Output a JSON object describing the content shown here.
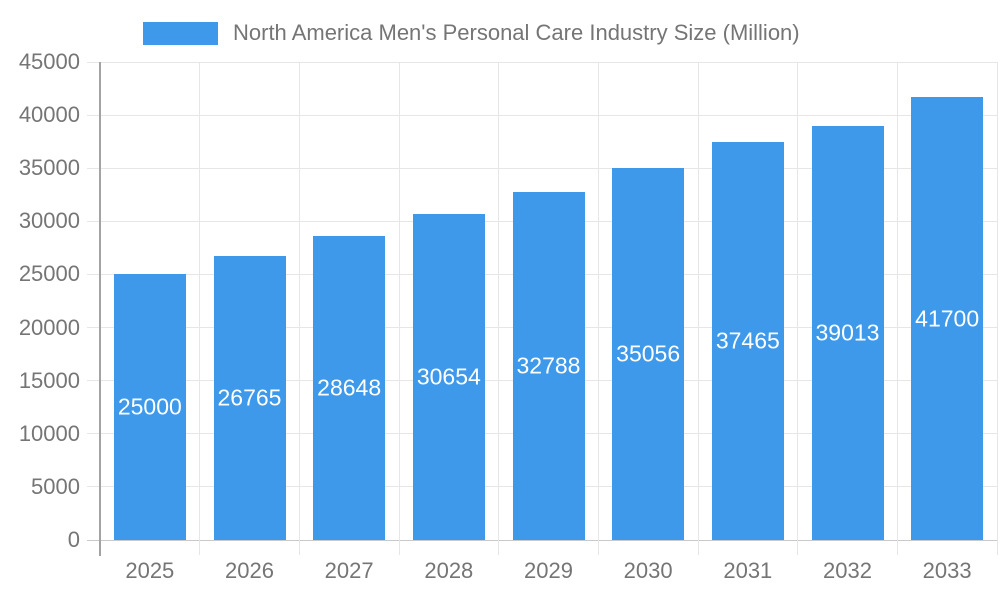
{
  "legend": {
    "label": "North America Men's Personal Care Industry Size (Million)"
  },
  "chart_data": {
    "type": "bar",
    "title": "North America Men's Personal Care Industry Size (Million)",
    "categories": [
      "2025",
      "2026",
      "2027",
      "2028",
      "2029",
      "2030",
      "2031",
      "2032",
      "2033"
    ],
    "values": [
      25000,
      26765,
      28648,
      30654,
      32788,
      35056,
      37465,
      39013,
      41700
    ],
    "series": [
      {
        "name": "North America Men's Personal Care Industry Size (Million)",
        "values": [
          25000,
          26765,
          28648,
          30654,
          32788,
          35056,
          37465,
          39013,
          41700
        ]
      }
    ],
    "xlabel": "",
    "ylabel": "",
    "ylim": [
      0,
      45000
    ],
    "yticks": [
      0,
      5000,
      10000,
      15000,
      20000,
      25000,
      30000,
      35000,
      40000,
      45000
    ],
    "grid": "both",
    "legend_position": "top",
    "value_labels_position": "inside-center",
    "colors": {
      "bar": "#3E99EB",
      "bar_label_text": "#ffffff",
      "axis_text": "#757575",
      "legend_text": "#757575",
      "gridline": "#e6e6e6",
      "baseline": "#c9c9c9",
      "axis_line": "#a3a3a3",
      "background": "#ffffff"
    }
  }
}
